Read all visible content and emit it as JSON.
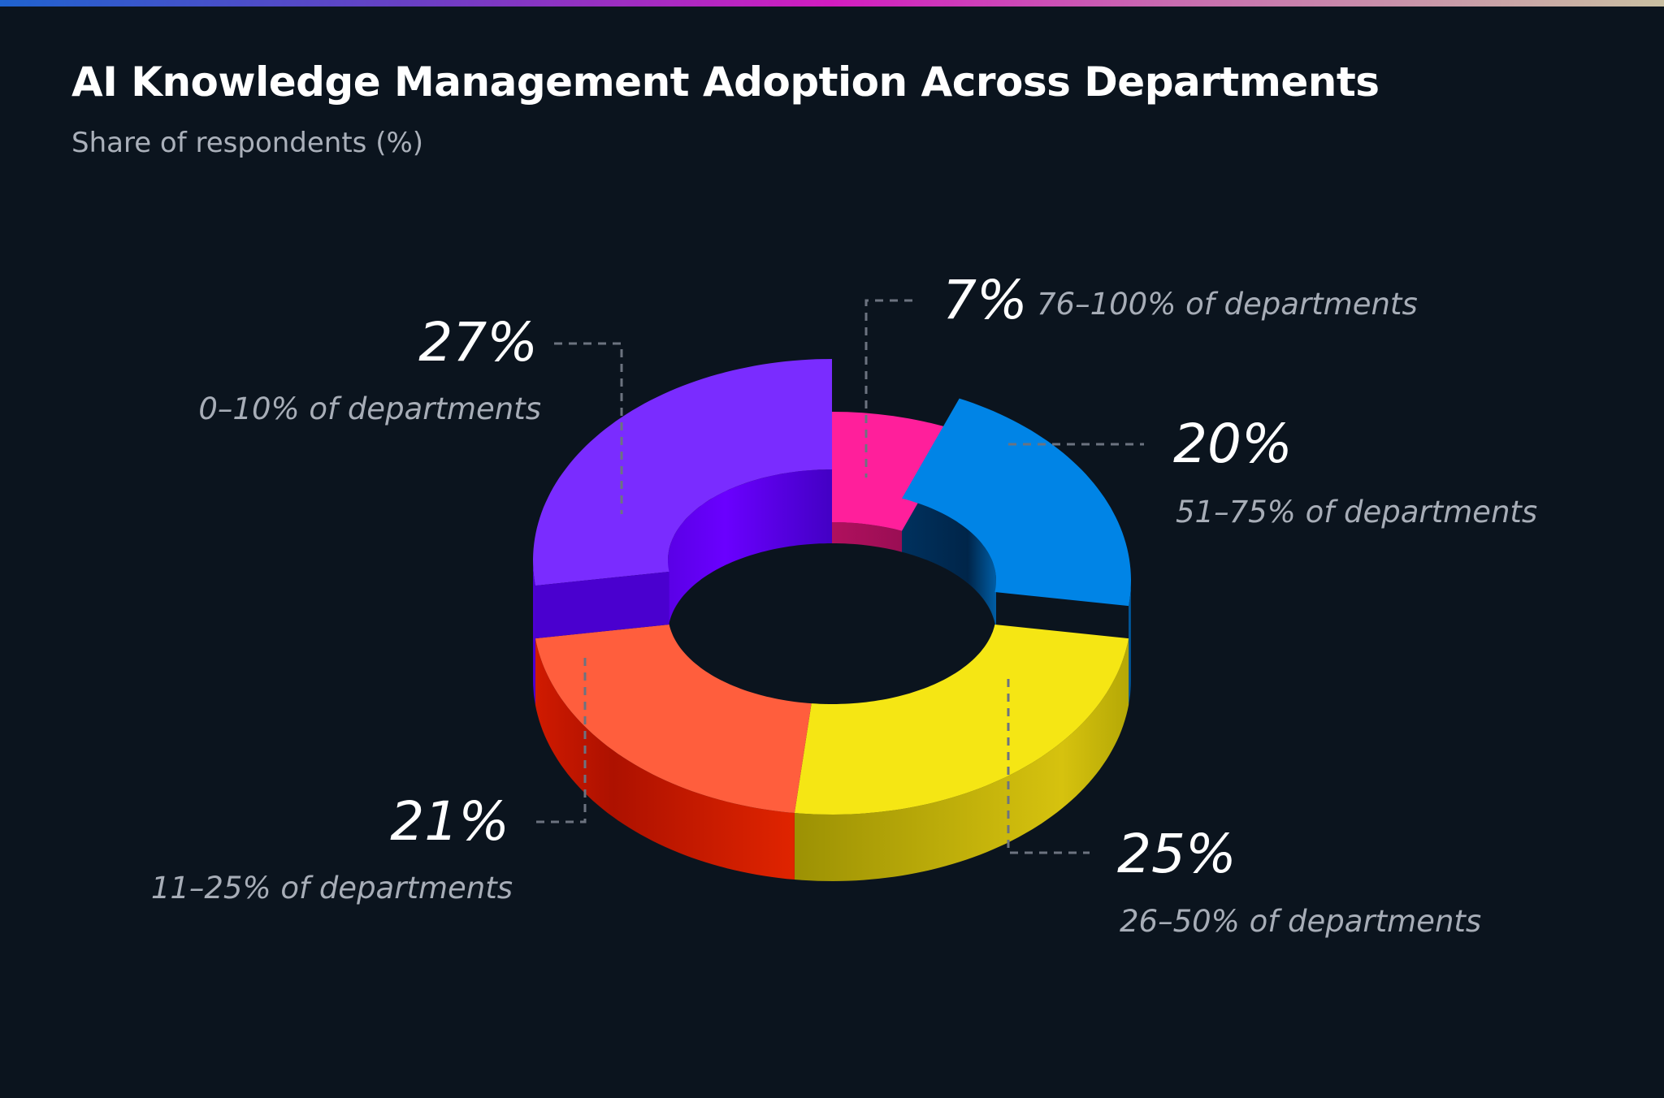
{
  "header": {
    "title": "AI Knowledge Management Adoption Across Departments",
    "subtitle": "Share of respondents (%)"
  },
  "chart_data": {
    "type": "pie",
    "style": "3d-donut",
    "title": "AI Knowledge Management Adoption Across Departments",
    "subtitle": "Share of respondents (%)",
    "unit": "%",
    "slices": [
      {
        "label": "76–100% of departments",
        "value": 7,
        "value_label": "7%",
        "color": "#ff1f9b"
      },
      {
        "label": "51–75% of departments",
        "value": 20,
        "value_label": "20%",
        "color": "#0084e6"
      },
      {
        "label": "26–50% of departments",
        "value": 25,
        "value_label": "25%",
        "color": "#f5e614"
      },
      {
        "label": "11–25% of departments",
        "value": 21,
        "value_label": "21%",
        "color": "#ff5e3d"
      },
      {
        "label": "0–10% of departments",
        "value": 27,
        "value_label": "27%",
        "color": "#7a2cff"
      }
    ],
    "legend": "none",
    "data_labels": "outside with dashed leader lines"
  }
}
